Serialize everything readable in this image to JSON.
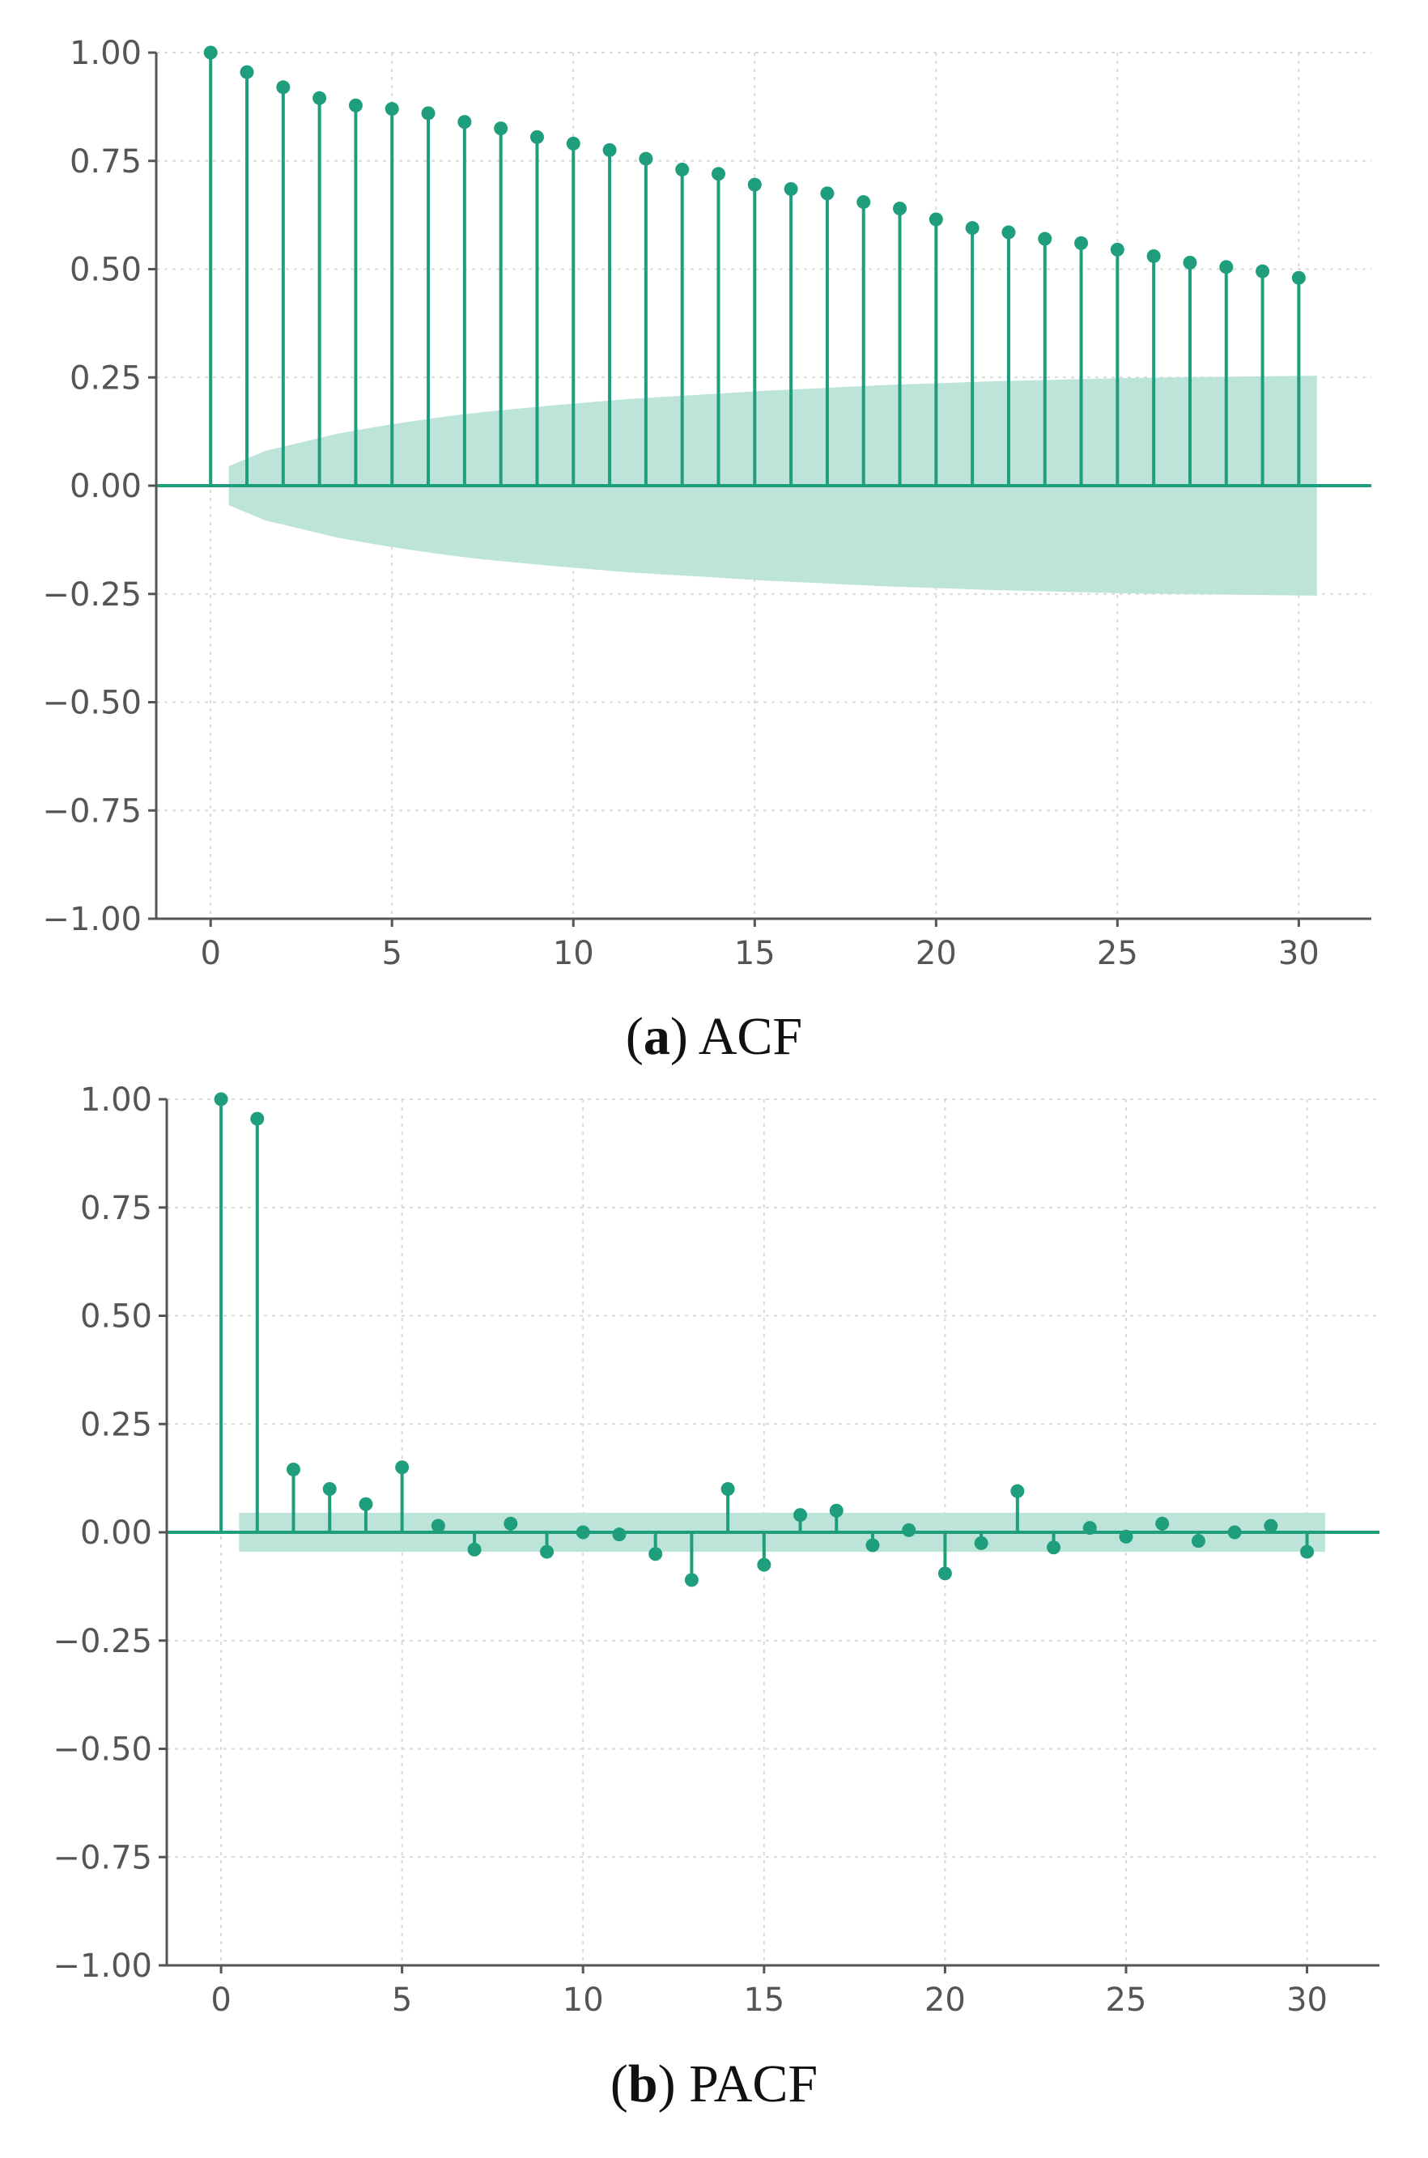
{
  "colors": {
    "stem": "#1e9e7c",
    "band": "#b9e3d7",
    "axis": "#555555",
    "grid": "#d9d9d9"
  },
  "chart_data": [
    {
      "type": "stem",
      "caption": {
        "letter": "a",
        "text": "ACF"
      },
      "xlim": [
        -1.5,
        32
      ],
      "ylim": [
        -1.0,
        1.0
      ],
      "xticks": [
        0,
        5,
        10,
        15,
        20,
        25,
        30
      ],
      "yticks": [
        1.0,
        0.75,
        0.5,
        0.25,
        0.0,
        -0.25,
        -0.5,
        -0.75,
        -1.0
      ],
      "xtick_labels": [
        "0",
        "5",
        "10",
        "15",
        "20",
        "25",
        "30"
      ],
      "ytick_labels": [
        "1.00",
        "0.75",
        "0.50",
        "0.25",
        "0.00",
        "−0.25",
        "−0.50",
        "−0.75",
        "−1.00"
      ],
      "grid": true,
      "lags": [
        0,
        1,
        2,
        3,
        4,
        5,
        6,
        7,
        8,
        9,
        10,
        11,
        12,
        13,
        14,
        15,
        16,
        17,
        18,
        19,
        20,
        21,
        22,
        23,
        24,
        25,
        26,
        27,
        28,
        29,
        30
      ],
      "values": [
        1.0,
        0.955,
        0.92,
        0.895,
        0.878,
        0.87,
        0.86,
        0.84,
        0.825,
        0.805,
        0.79,
        0.775,
        0.755,
        0.73,
        0.72,
        0.695,
        0.685,
        0.675,
        0.655,
        0.64,
        0.615,
        0.595,
        0.585,
        0.57,
        0.56,
        0.545,
        0.53,
        0.515,
        0.505,
        0.495,
        0.48
      ],
      "confidence_band": {
        "x_start": 0.5,
        "x_end": 30.5,
        "upper": [
          0.045,
          0.08,
          0.1,
          0.12,
          0.135,
          0.148,
          0.16,
          0.17,
          0.178,
          0.186,
          0.193,
          0.2,
          0.205,
          0.21,
          0.215,
          0.22,
          0.224,
          0.228,
          0.232,
          0.235,
          0.238,
          0.241,
          0.243,
          0.245,
          0.247,
          0.249,
          0.25,
          0.251,
          0.252,
          0.253,
          0.254
        ]
      }
    },
    {
      "type": "stem",
      "caption": {
        "letter": "b",
        "text": "PACF"
      },
      "xlim": [
        -1.5,
        32
      ],
      "ylim": [
        -1.0,
        1.0
      ],
      "xticks": [
        0,
        5,
        10,
        15,
        20,
        25,
        30
      ],
      "yticks": [
        1.0,
        0.75,
        0.5,
        0.25,
        0.0,
        -0.25,
        -0.5,
        -0.75,
        -1.0
      ],
      "xtick_labels": [
        "0",
        "5",
        "10",
        "15",
        "20",
        "25",
        "30"
      ],
      "ytick_labels": [
        "1.00",
        "0.75",
        "0.50",
        "0.25",
        "0.00",
        "−0.25",
        "−0.50",
        "−0.75",
        "−1.00"
      ],
      "grid": true,
      "lags": [
        0,
        1,
        2,
        3,
        4,
        5,
        6,
        7,
        8,
        9,
        10,
        11,
        12,
        13,
        14,
        15,
        16,
        17,
        18,
        19,
        20,
        21,
        22,
        23,
        24,
        25,
        26,
        27,
        28,
        29,
        30
      ],
      "values": [
        1.0,
        0.955,
        0.145,
        0.1,
        0.065,
        0.15,
        0.015,
        -0.04,
        0.02,
        -0.045,
        0.0,
        -0.005,
        -0.05,
        -0.11,
        0.1,
        -0.075,
        0.04,
        0.05,
        -0.03,
        0.005,
        -0.095,
        -0.025,
        0.095,
        -0.035,
        0.01,
        -0.01,
        0.02,
        -0.02,
        0.0,
        0.015,
        -0.045
      ],
      "confidence_band": {
        "x_start": 0.5,
        "x_end": 30.5,
        "upper": [
          0.045,
          0.045,
          0.045,
          0.045,
          0.045,
          0.045,
          0.045,
          0.045,
          0.045,
          0.045,
          0.045,
          0.045,
          0.045,
          0.045,
          0.045,
          0.045,
          0.045,
          0.045,
          0.045,
          0.045,
          0.045,
          0.045,
          0.045,
          0.045,
          0.045,
          0.045,
          0.045,
          0.045,
          0.045,
          0.045,
          0.045
        ]
      }
    }
  ]
}
